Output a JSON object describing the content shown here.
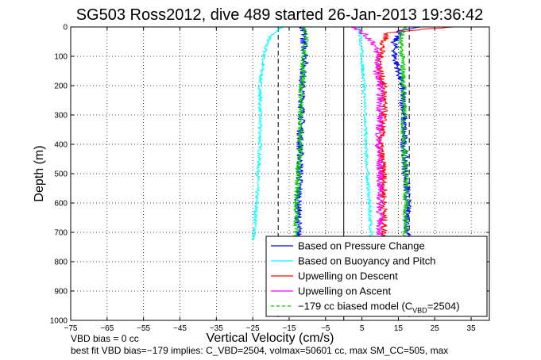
{
  "chart_data": {
    "type": "line",
    "title": "SG503 Ross2012, dive 489 started 26-Jan-2013 19:36:42",
    "xlabel": "Vertical Velocity (cm/s)",
    "ylabel": "Depth (m)",
    "xlim": [
      -75,
      40
    ],
    "ylim": [
      0,
      1000
    ],
    "y_reversed": true,
    "x_ticks": [
      -75,
      -65,
      -55,
      -45,
      -35,
      -25,
      -15,
      -5,
      5,
      15,
      25,
      35
    ],
    "x_tick_labels": [
      "−75",
      "−65",
      "−55",
      "−45",
      "−35",
      "−25",
      "−15",
      "−5",
      "5",
      "15",
      "25",
      "35"
    ],
    "y_ticks": [
      0,
      100,
      200,
      300,
      400,
      500,
      600,
      700,
      800,
      900,
      1000
    ],
    "y_tick_labels": [
      "0",
      "100",
      "200",
      "300",
      "400",
      "500",
      "600",
      "700",
      "800",
      "900",
      "1000"
    ],
    "grid": "dotted",
    "legend_position": "bottom-right",
    "reference_lines": [
      {
        "x": 0,
        "style": "solid",
        "color": "#000000"
      },
      {
        "x": -18,
        "style": "dashed",
        "color": "#000000"
      },
      {
        "x": 18,
        "style": "dashed",
        "color": "#000000"
      }
    ],
    "series": [
      {
        "name": "Based on Pressure Change",
        "color": "#0000ff",
        "noise": 1.0,
        "segments": [
          {
            "depth": [
              0,
              20,
              50,
              100,
              150,
              200,
              300,
              400,
              500,
              600,
              700,
              725
            ],
            "x": [
              -12,
              -11,
              -11,
              -10.5,
              -11,
              -11.5,
              -11.5,
              -12,
              -12,
              -12.5,
              -12.5,
              -12.5
            ]
          },
          {
            "depth": [
              0,
              10,
              20,
              50,
              100,
              150,
              200,
              300,
              400,
              500,
              600,
              700,
              725
            ],
            "x": [
              22,
              16,
              15,
              14,
              14,
              15,
              16,
              16.5,
              16.5,
              17,
              17.5,
              17.5,
              17.5
            ]
          }
        ]
      },
      {
        "name": "Based on Buoyancy and Pitch",
        "color": "#00ffff",
        "noise": 0.5,
        "segments": [
          {
            "depth": [
              0,
              30,
              50,
              100,
              200,
              300,
              400,
              500,
              600,
              700,
              725
            ],
            "x": [
              -17,
              -20,
              -21,
              -22,
              -23,
              -23,
              -23,
              -23.5,
              -24,
              -24.5,
              -25
            ]
          },
          {
            "depth": [
              0,
              20,
              100,
              200,
              300,
              400,
              500,
              600,
              700,
              725
            ],
            "x": [
              4,
              4.5,
              5,
              5.5,
              6,
              6,
              6.5,
              7,
              7.5,
              7.5
            ]
          }
        ]
      },
      {
        "name": "Upwelling on Descent",
        "color": "#ff0000",
        "noise": 1.0,
        "segments": [
          {
            "depth": [
              0,
              10,
              20,
              50,
              100,
              150,
              200,
              300,
              400,
              500,
              600,
              700,
              725
            ],
            "x": [
              30,
              20,
              12,
              11,
              10,
              10,
              11,
              11,
              10,
              11,
              11,
              11,
              11
            ]
          }
        ]
      },
      {
        "name": "Upwelling on Ascent",
        "color": "#ff00ff",
        "noise": 1.0,
        "segments": [
          {
            "depth": [
              0,
              20,
              50,
              100,
              150,
              200,
              300,
              400,
              500,
              600,
              700,
              725
            ],
            "x": [
              3,
              5,
              8,
              9.5,
              9,
              10,
              10,
              9.5,
              10,
              10,
              10,
              10
            ]
          }
        ]
      },
      {
        "name": "−179 cc biased model (C",
        "name_sub": "VBD",
        "name_suffix": "=2504)",
        "color": "#00cc00",
        "dashed_in_legend": true,
        "noise": 0.8,
        "segments": [
          {
            "depth": [
              0,
              20,
              50,
              100,
              200,
              300,
              400,
              500,
              600,
              700,
              725
            ],
            "x": [
              -11,
              -10.5,
              -10.5,
              -11,
              -11.5,
              -12,
              -12,
              -12.5,
              -13,
              -13,
              -13
            ]
          },
          {
            "depth": [
              0,
              20,
              50,
              100,
              200,
              300,
              400,
              500,
              600,
              700,
              725
            ],
            "x": [
              17,
              16,
              15.5,
              16,
              16.5,
              16.5,
              16.5,
              17,
              17,
              17,
              17
            ]
          }
        ]
      }
    ],
    "notes": [
      "VBD bias = 0 cc",
      "best fit VBD bias=−179 implies: C_VBD=2504, volmax=50601 cc, max SM_CC=505, max"
    ]
  }
}
